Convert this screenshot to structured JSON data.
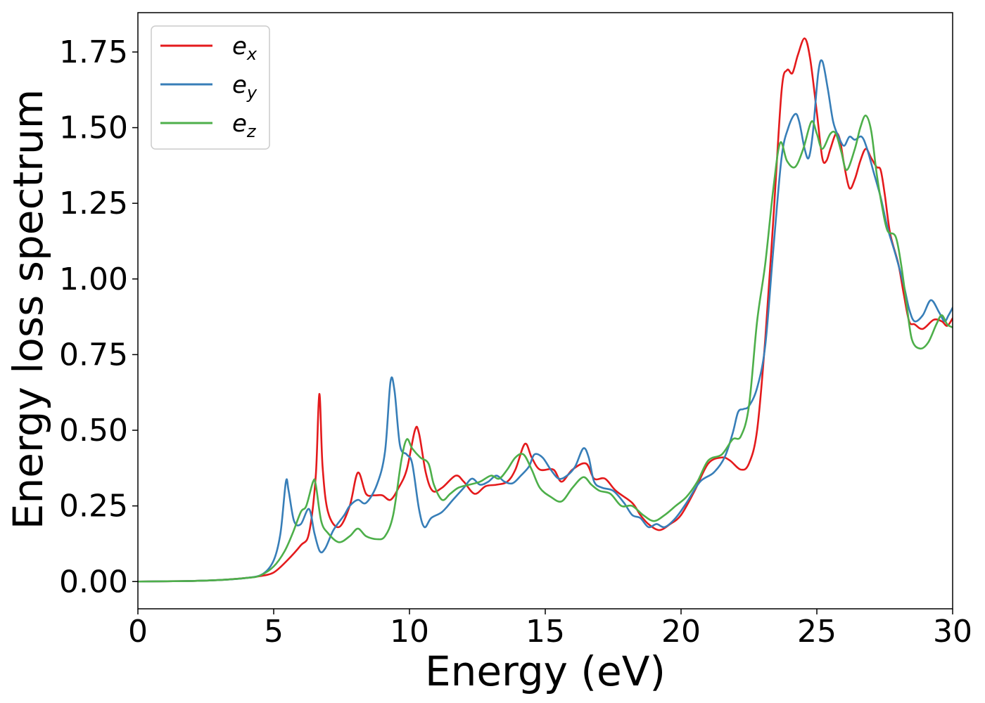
{
  "chart_data": {
    "type": "line",
    "title": "",
    "xlabel": "Energy (eV)",
    "ylabel": "Energy loss spectrum",
    "xlim": [
      0,
      30
    ],
    "ylim": [
      -0.09,
      1.88
    ],
    "xticks": [
      0,
      5,
      10,
      15,
      20,
      25,
      30
    ],
    "xtick_labels": [
      "0",
      "5",
      "10",
      "15",
      "20",
      "25",
      "30"
    ],
    "yticks": [
      0,
      0.25,
      0.5,
      0.75,
      1.0,
      1.25,
      1.5,
      1.75
    ],
    "ytick_labels": [
      "0.00",
      "0.25",
      "0.50",
      "0.75",
      "1.00",
      "1.25",
      "1.50",
      "1.75"
    ],
    "grid": false,
    "legend_position": "top-left",
    "series": [
      {
        "name": "e_x",
        "legend_base": "e",
        "legend_sub": "x",
        "color": "#e41a1c",
        "points": [
          [
            0,
            0
          ],
          [
            2,
            0.002
          ],
          [
            3,
            0.005
          ],
          [
            4,
            0.012
          ],
          [
            4.5,
            0.018
          ],
          [
            5,
            0.03
          ],
          [
            5.5,
            0.07
          ],
          [
            6,
            0.12
          ],
          [
            6.3,
            0.16
          ],
          [
            6.55,
            0.35
          ],
          [
            6.68,
            0.62
          ],
          [
            6.8,
            0.38
          ],
          [
            7.0,
            0.23
          ],
          [
            7.4,
            0.18
          ],
          [
            7.8,
            0.25
          ],
          [
            8.1,
            0.36
          ],
          [
            8.4,
            0.29
          ],
          [
            8.7,
            0.285
          ],
          [
            9.0,
            0.285
          ],
          [
            9.3,
            0.27
          ],
          [
            9.6,
            0.31
          ],
          [
            9.9,
            0.37
          ],
          [
            10.2,
            0.5
          ],
          [
            10.35,
            0.49
          ],
          [
            10.6,
            0.36
          ],
          [
            10.85,
            0.3
          ],
          [
            11.2,
            0.31
          ],
          [
            11.7,
            0.35
          ],
          [
            12.0,
            0.33
          ],
          [
            12.4,
            0.29
          ],
          [
            12.8,
            0.315
          ],
          [
            13.2,
            0.32
          ],
          [
            13.6,
            0.33
          ],
          [
            13.9,
            0.37
          ],
          [
            14.25,
            0.455
          ],
          [
            14.5,
            0.41
          ],
          [
            14.8,
            0.37
          ],
          [
            15.3,
            0.37
          ],
          [
            15.6,
            0.33
          ],
          [
            16.0,
            0.37
          ],
          [
            16.5,
            0.39
          ],
          [
            16.8,
            0.34
          ],
          [
            17.2,
            0.34
          ],
          [
            17.6,
            0.3
          ],
          [
            18.2,
            0.26
          ],
          [
            18.5,
            0.22
          ],
          [
            18.8,
            0.19
          ],
          [
            19.2,
            0.17
          ],
          [
            19.6,
            0.19
          ],
          [
            20.0,
            0.22
          ],
          [
            20.5,
            0.3
          ],
          [
            21.0,
            0.39
          ],
          [
            21.5,
            0.41
          ],
          [
            21.8,
            0.4
          ],
          [
            22.2,
            0.37
          ],
          [
            22.5,
            0.39
          ],
          [
            22.8,
            0.5
          ],
          [
            23.1,
            0.8
          ],
          [
            23.4,
            1.2
          ],
          [
            23.7,
            1.62
          ],
          [
            23.9,
            1.69
          ],
          [
            24.1,
            1.68
          ],
          [
            24.3,
            1.74
          ],
          [
            24.55,
            1.795
          ],
          [
            24.75,
            1.73
          ],
          [
            25.0,
            1.55
          ],
          [
            25.2,
            1.4
          ],
          [
            25.35,
            1.39
          ],
          [
            25.5,
            1.43
          ],
          [
            25.7,
            1.48
          ],
          [
            25.85,
            1.46
          ],
          [
            26.0,
            1.38
          ],
          [
            26.2,
            1.3
          ],
          [
            26.4,
            1.33
          ],
          [
            26.6,
            1.39
          ],
          [
            26.8,
            1.43
          ],
          [
            27.0,
            1.4
          ],
          [
            27.2,
            1.37
          ],
          [
            27.35,
            1.36
          ],
          [
            27.5,
            1.28
          ],
          [
            27.7,
            1.15
          ],
          [
            28.0,
            1.05
          ],
          [
            28.2,
            0.95
          ],
          [
            28.4,
            0.86
          ],
          [
            28.6,
            0.85
          ],
          [
            28.9,
            0.835
          ],
          [
            29.3,
            0.865
          ],
          [
            29.6,
            0.86
          ],
          [
            29.8,
            0.845
          ],
          [
            30.0,
            0.87
          ]
        ]
      },
      {
        "name": "e_y",
        "legend_base": "e",
        "legend_sub": "y",
        "color": "#377eb8",
        "points": [
          [
            0,
            0
          ],
          [
            2,
            0.002
          ],
          [
            3,
            0.005
          ],
          [
            4,
            0.012
          ],
          [
            4.6,
            0.025
          ],
          [
            5.0,
            0.07
          ],
          [
            5.25,
            0.16
          ],
          [
            5.45,
            0.33
          ],
          [
            5.55,
            0.3
          ],
          [
            5.75,
            0.2
          ],
          [
            6.0,
            0.19
          ],
          [
            6.3,
            0.24
          ],
          [
            6.5,
            0.16
          ],
          [
            6.7,
            0.1
          ],
          [
            6.9,
            0.11
          ],
          [
            7.2,
            0.17
          ],
          [
            7.6,
            0.22
          ],
          [
            7.8,
            0.25
          ],
          [
            8.1,
            0.27
          ],
          [
            8.4,
            0.26
          ],
          [
            8.8,
            0.32
          ],
          [
            9.1,
            0.43
          ],
          [
            9.3,
            0.66
          ],
          [
            9.45,
            0.63
          ],
          [
            9.65,
            0.45
          ],
          [
            9.9,
            0.42
          ],
          [
            10.1,
            0.39
          ],
          [
            10.35,
            0.24
          ],
          [
            10.55,
            0.18
          ],
          [
            10.8,
            0.21
          ],
          [
            11.2,
            0.23
          ],
          [
            11.6,
            0.27
          ],
          [
            12.0,
            0.31
          ],
          [
            12.3,
            0.34
          ],
          [
            12.6,
            0.32
          ],
          [
            12.9,
            0.33
          ],
          [
            13.2,
            0.35
          ],
          [
            13.5,
            0.33
          ],
          [
            13.8,
            0.325
          ],
          [
            14.1,
            0.35
          ],
          [
            14.4,
            0.38
          ],
          [
            14.6,
            0.42
          ],
          [
            14.9,
            0.41
          ],
          [
            15.2,
            0.37
          ],
          [
            15.5,
            0.34
          ],
          [
            15.8,
            0.35
          ],
          [
            16.1,
            0.38
          ],
          [
            16.4,
            0.44
          ],
          [
            16.6,
            0.41
          ],
          [
            16.8,
            0.33
          ],
          [
            17.1,
            0.31
          ],
          [
            17.5,
            0.3
          ],
          [
            17.9,
            0.26
          ],
          [
            18.2,
            0.22
          ],
          [
            18.5,
            0.21
          ],
          [
            18.8,
            0.18
          ],
          [
            19.1,
            0.19
          ],
          [
            19.4,
            0.18
          ],
          [
            19.8,
            0.21
          ],
          [
            20.2,
            0.26
          ],
          [
            20.7,
            0.33
          ],
          [
            21.2,
            0.36
          ],
          [
            21.6,
            0.41
          ],
          [
            21.9,
            0.49
          ],
          [
            22.1,
            0.56
          ],
          [
            22.3,
            0.57
          ],
          [
            22.5,
            0.58
          ],
          [
            22.8,
            0.64
          ],
          [
            23.1,
            0.78
          ],
          [
            23.4,
            1.1
          ],
          [
            23.7,
            1.4
          ],
          [
            23.95,
            1.5
          ],
          [
            24.2,
            1.545
          ],
          [
            24.35,
            1.52
          ],
          [
            24.55,
            1.43
          ],
          [
            24.7,
            1.4
          ],
          [
            24.85,
            1.48
          ],
          [
            25.05,
            1.68
          ],
          [
            25.2,
            1.72
          ],
          [
            25.4,
            1.63
          ],
          [
            25.6,
            1.52
          ],
          [
            25.8,
            1.47
          ],
          [
            26.0,
            1.44
          ],
          [
            26.2,
            1.47
          ],
          [
            26.4,
            1.46
          ],
          [
            26.65,
            1.47
          ],
          [
            26.85,
            1.43
          ],
          [
            27.1,
            1.35
          ],
          [
            27.35,
            1.27
          ],
          [
            27.6,
            1.17
          ],
          [
            27.9,
            1.08
          ],
          [
            28.2,
            0.98
          ],
          [
            28.4,
            0.9
          ],
          [
            28.6,
            0.86
          ],
          [
            28.9,
            0.88
          ],
          [
            29.2,
            0.93
          ],
          [
            29.5,
            0.89
          ],
          [
            29.7,
            0.86
          ],
          [
            29.85,
            0.88
          ],
          [
            30.0,
            0.905
          ]
        ]
      },
      {
        "name": "e_z",
        "legend_base": "e",
        "legend_sub": "z",
        "color": "#4daf4a",
        "points": [
          [
            0,
            0
          ],
          [
            2,
            0.002
          ],
          [
            3,
            0.005
          ],
          [
            4,
            0.012
          ],
          [
            4.5,
            0.02
          ],
          [
            5.0,
            0.05
          ],
          [
            5.4,
            0.1
          ],
          [
            5.7,
            0.16
          ],
          [
            6.0,
            0.23
          ],
          [
            6.2,
            0.25
          ],
          [
            6.45,
            0.33
          ],
          [
            6.55,
            0.32
          ],
          [
            6.75,
            0.2
          ],
          [
            7.0,
            0.16
          ],
          [
            7.4,
            0.13
          ],
          [
            7.8,
            0.15
          ],
          [
            8.1,
            0.175
          ],
          [
            8.4,
            0.15
          ],
          [
            8.8,
            0.14
          ],
          [
            9.1,
            0.15
          ],
          [
            9.4,
            0.22
          ],
          [
            9.7,
            0.4
          ],
          [
            9.9,
            0.47
          ],
          [
            10.1,
            0.44
          ],
          [
            10.4,
            0.41
          ],
          [
            10.7,
            0.39
          ],
          [
            10.9,
            0.32
          ],
          [
            11.2,
            0.27
          ],
          [
            11.5,
            0.29
          ],
          [
            11.8,
            0.31
          ],
          [
            12.2,
            0.32
          ],
          [
            12.6,
            0.33
          ],
          [
            13.0,
            0.35
          ],
          [
            13.3,
            0.34
          ],
          [
            13.6,
            0.37
          ],
          [
            13.9,
            0.41
          ],
          [
            14.2,
            0.42
          ],
          [
            14.5,
            0.37
          ],
          [
            14.8,
            0.31
          ],
          [
            15.2,
            0.28
          ],
          [
            15.6,
            0.265
          ],
          [
            16.0,
            0.31
          ],
          [
            16.4,
            0.345
          ],
          [
            16.7,
            0.32
          ],
          [
            17.0,
            0.3
          ],
          [
            17.4,
            0.29
          ],
          [
            17.8,
            0.25
          ],
          [
            18.2,
            0.25
          ],
          [
            18.6,
            0.22
          ],
          [
            19.0,
            0.2
          ],
          [
            19.4,
            0.22
          ],
          [
            19.8,
            0.25
          ],
          [
            20.2,
            0.28
          ],
          [
            20.6,
            0.33
          ],
          [
            21.0,
            0.4
          ],
          [
            21.5,
            0.42
          ],
          [
            21.9,
            0.47
          ],
          [
            22.2,
            0.48
          ],
          [
            22.5,
            0.58
          ],
          [
            22.8,
            0.86
          ],
          [
            23.1,
            1.05
          ],
          [
            23.4,
            1.3
          ],
          [
            23.65,
            1.45
          ],
          [
            23.9,
            1.39
          ],
          [
            24.2,
            1.37
          ],
          [
            24.5,
            1.43
          ],
          [
            24.8,
            1.52
          ],
          [
            25.0,
            1.48
          ],
          [
            25.2,
            1.43
          ],
          [
            25.5,
            1.48
          ],
          [
            25.7,
            1.48
          ],
          [
            25.9,
            1.42
          ],
          [
            26.1,
            1.36
          ],
          [
            26.4,
            1.43
          ],
          [
            26.6,
            1.5
          ],
          [
            26.8,
            1.54
          ],
          [
            27.0,
            1.49
          ],
          [
            27.2,
            1.35
          ],
          [
            27.4,
            1.24
          ],
          [
            27.6,
            1.16
          ],
          [
            27.9,
            1.14
          ],
          [
            28.1,
            1.05
          ],
          [
            28.3,
            0.92
          ],
          [
            28.5,
            0.8
          ],
          [
            28.8,
            0.77
          ],
          [
            29.1,
            0.79
          ],
          [
            29.4,
            0.85
          ],
          [
            29.6,
            0.88
          ],
          [
            29.8,
            0.85
          ],
          [
            30.0,
            0.84
          ]
        ]
      }
    ]
  }
}
